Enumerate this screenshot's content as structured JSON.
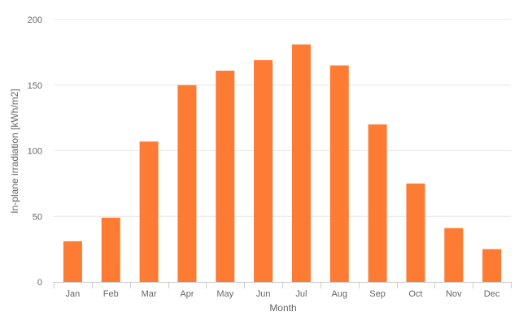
{
  "chart_data": {
    "type": "bar",
    "title": "",
    "xlabel": "Month",
    "ylabel": "In-plane irradiation [kWh/m2]",
    "categories": [
      "Jan",
      "Feb",
      "Mar",
      "Apr",
      "May",
      "Jun",
      "Jul",
      "Aug",
      "Sep",
      "Oct",
      "Nov",
      "Dec"
    ],
    "values": [
      31,
      49,
      107,
      150,
      161,
      169,
      181,
      165,
      120,
      75,
      41,
      25
    ],
    "ylim": [
      0,
      200
    ],
    "yticks": [
      "0",
      "50",
      "100",
      "150",
      "200"
    ],
    "grid": "horizontal",
    "legend": "none",
    "bar_color": "#fd7b33"
  }
}
